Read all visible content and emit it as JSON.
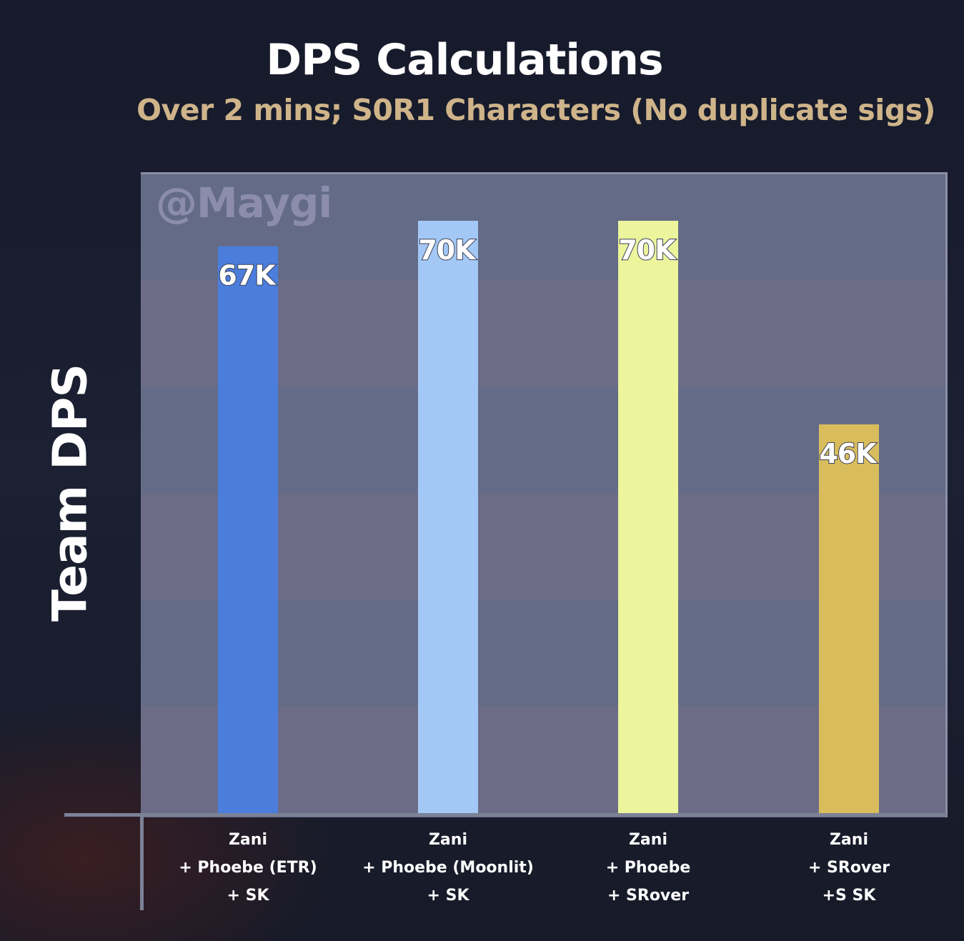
{
  "chart_data": {
    "type": "bar",
    "title": "DPS Calculations",
    "subtitle": "Over 2 mins; S0R1 Characters (No duplicate sigs)",
    "ylabel": "Team DPS",
    "xlabel": "",
    "watermark": "@Maygi",
    "ylim": [
      0,
      75
    ],
    "grid": false,
    "categories": [
      [
        "Zani",
        "+ Phoebe (ETR)",
        "+ SK"
      ],
      [
        "Zani",
        "+ Phoebe (Moonlit)",
        "+ SK"
      ],
      [
        "Zani",
        "+ Phoebe",
        "+ SRover"
      ],
      [
        "Zani",
        "+ SRover",
        "+S SK"
      ]
    ],
    "values": [
      67,
      70,
      70,
      46
    ],
    "value_labels": [
      "67K",
      "70K",
      "70K",
      "46K"
    ],
    "units": "K",
    "bar_colors": [
      "#4a7ddc",
      "#a3c8f6",
      "#ecf59c",
      "#d9bd5c"
    ]
  }
}
